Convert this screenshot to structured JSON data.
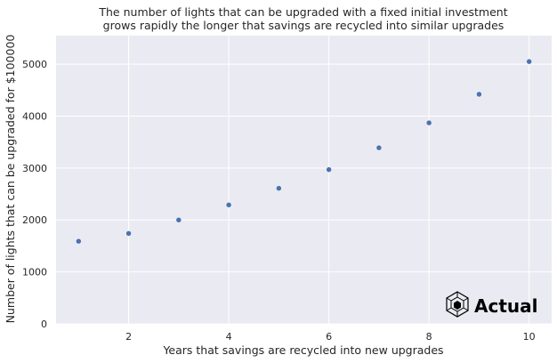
{
  "chart_data": {
    "type": "scatter",
    "title_line1": "The number of lights that can be upgraded with a fixed initial investment",
    "title_line2": "grows rapidly the longer that savings are recycled into similar upgrades",
    "xlabel": "Years that savings are recycled into new upgrades",
    "ylabel": "Number of lights that can be upgraded for $100000",
    "xlim": [
      0.55,
      10.45
    ],
    "ylim": [
      0,
      5550
    ],
    "x_ticks": [
      2,
      4,
      6,
      8,
      10
    ],
    "y_ticks": [
      0,
      1000,
      2000,
      3000,
      4000,
      5000
    ],
    "grid": true,
    "x": [
      1,
      2,
      3,
      4,
      5,
      6,
      7,
      8,
      9,
      10
    ],
    "y": [
      1590,
      1740,
      2000,
      2290,
      2610,
      2970,
      3390,
      3870,
      4420,
      5050
    ],
    "colors": {
      "background": "#eaeaf2",
      "grid": "#ffffff",
      "marker": "#4c72b0"
    }
  },
  "logo": {
    "text": "Actual",
    "icon": "hexagon-cube-icon"
  }
}
